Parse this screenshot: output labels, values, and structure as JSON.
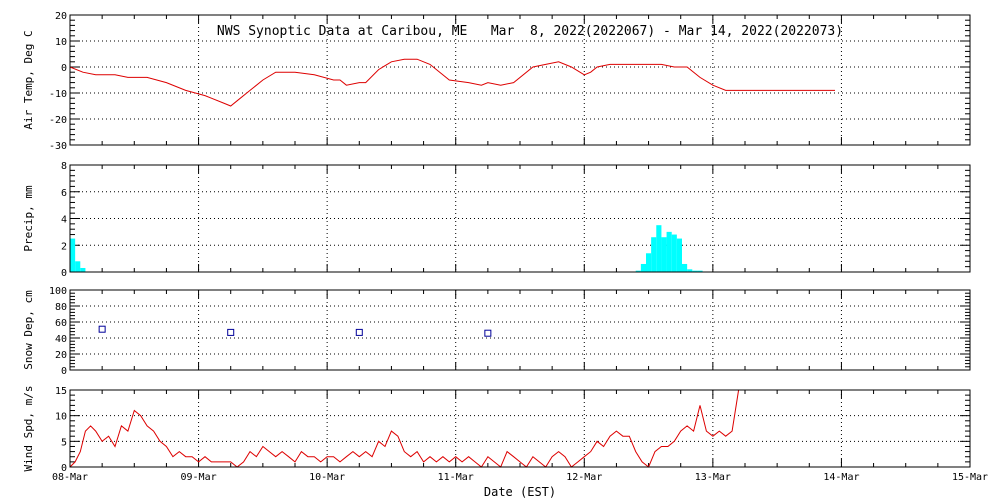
{
  "title": "NWS Synoptic Data at Caribou, ME   Mar  8, 2022(2022067) - Mar 14, 2022(2022073)",
  "x_axis": {
    "label": "Date (EST)",
    "ticks": [
      "08-Mar",
      "09-Mar",
      "10-Mar",
      "11-Mar",
      "12-Mar",
      "13-Mar",
      "14-Mar",
      "15-Mar"
    ],
    "range_days": [
      0,
      7
    ]
  },
  "colors": {
    "temp": "#dd0000",
    "precip": "#00ffff",
    "snow": "#000099",
    "wind": "#dd0000",
    "grid": "#000000"
  },
  "chart_data": [
    {
      "type": "line",
      "ylabel": "Air Temp, Deg C",
      "ylim": [
        -30,
        20
      ],
      "yticks": [
        -30,
        -20,
        -10,
        0,
        10,
        20
      ],
      "grid": true,
      "series": [
        {
          "x": [
            0,
            0.1,
            0.2,
            0.35,
            0.45,
            0.6,
            0.75,
            0.9,
            1.05,
            1.1,
            1.2,
            1.25,
            1.3,
            1.4,
            1.5,
            1.6,
            1.75,
            1.9,
            2.05,
            2.1,
            2.15,
            2.25,
            2.3,
            2.4,
            2.5,
            2.6,
            2.7,
            2.8,
            2.95,
            3.1,
            3.2,
            3.25,
            3.35,
            3.45,
            3.6,
            3.7,
            3.8,
            3.9,
            4.0,
            4.05,
            4.1,
            4.2,
            4.35,
            4.5,
            4.6,
            4.7,
            4.8,
            4.9,
            5.0,
            5.1,
            5.5,
            5.95
          ],
          "y": [
            0,
            -2,
            -3,
            -3,
            -4,
            -4,
            -6,
            -9,
            -11,
            -12,
            -14,
            -15,
            -13,
            -9,
            -5,
            -2,
            -2,
            -3,
            -5,
            -5,
            -7,
            -6,
            -6,
            -1,
            2,
            3,
            3,
            1,
            -5,
            -6,
            -7,
            -6,
            -7,
            -6,
            0,
            1,
            2,
            0,
            -3,
            -2,
            0,
            1,
            1,
            1,
            1,
            0,
            0,
            -4,
            -7,
            -9,
            -9,
            -9
          ]
        }
      ]
    },
    {
      "type": "bar",
      "ylabel": "Precip, mm",
      "ylim": [
        0,
        8
      ],
      "yticks": [
        0,
        2,
        4,
        6,
        8
      ],
      "grid": true,
      "bars": [
        {
          "x": 0.0,
          "y": 2.5
        },
        {
          "x": 0.04,
          "y": 0.8
        },
        {
          "x": 0.08,
          "y": 0.3
        },
        {
          "x": 4.4,
          "y": 0.1
        },
        {
          "x": 4.44,
          "y": 0.6
        },
        {
          "x": 4.48,
          "y": 1.4
        },
        {
          "x": 4.52,
          "y": 2.6
        },
        {
          "x": 4.56,
          "y": 3.5
        },
        {
          "x": 4.6,
          "y": 2.6
        },
        {
          "x": 4.64,
          "y": 3.0
        },
        {
          "x": 4.68,
          "y": 2.8
        },
        {
          "x": 4.72,
          "y": 2.5
        },
        {
          "x": 4.76,
          "y": 0.6
        },
        {
          "x": 4.8,
          "y": 0.2
        },
        {
          "x": 4.84,
          "y": 0.1
        },
        {
          "x": 4.88,
          "y": 0.1
        }
      ]
    },
    {
      "type": "scatter",
      "ylabel": "Snow Dep, cm",
      "ylim": [
        0,
        100
      ],
      "yticks": [
        0,
        20,
        40,
        60,
        80,
        100
      ],
      "grid": true,
      "points": [
        {
          "x": 0.25,
          "y": 51
        },
        {
          "x": 1.25,
          "y": 47
        },
        {
          "x": 2.25,
          "y": 47
        },
        {
          "x": 3.25,
          "y": 46
        }
      ]
    },
    {
      "type": "line",
      "ylabel": "Wind Spd, m/s",
      "ylim": [
        0,
        15
      ],
      "yticks": [
        0,
        5,
        10,
        15
      ],
      "grid": true,
      "series": [
        {
          "x": [
            0,
            0.04,
            0.08,
            0.12,
            0.16,
            0.2,
            0.25,
            0.3,
            0.35,
            0.4,
            0.45,
            0.5,
            0.55,
            0.6,
            0.65,
            0.7,
            0.75,
            0.8,
            0.85,
            0.9,
            0.95,
            1.0,
            1.05,
            1.1,
            1.15,
            1.2,
            1.25,
            1.3,
            1.35,
            1.4,
            1.45,
            1.5,
            1.55,
            1.6,
            1.65,
            1.7,
            1.75,
            1.8,
            1.85,
            1.9,
            1.95,
            2.0,
            2.05,
            2.1,
            2.15,
            2.2,
            2.25,
            2.3,
            2.35,
            2.4,
            2.45,
            2.5,
            2.55,
            2.6,
            2.65,
            2.7,
            2.75,
            2.8,
            2.85,
            2.9,
            2.95,
            3.0,
            3.05,
            3.1,
            3.15,
            3.2,
            3.25,
            3.3,
            3.35,
            3.4,
            3.45,
            3.5,
            3.55,
            3.6,
            3.65,
            3.7,
            3.75,
            3.8,
            3.85,
            3.9,
            3.95,
            4.0,
            4.05,
            4.1,
            4.15,
            4.2,
            4.25,
            4.3,
            4.35,
            4.4,
            4.45,
            4.5,
            4.55,
            4.6,
            4.65,
            4.7,
            4.75,
            4.8,
            4.85,
            4.9,
            4.95,
            5.0,
            5.05,
            5.1,
            5.15,
            5.2
          ],
          "y": [
            0,
            1,
            3,
            7,
            8,
            7,
            5,
            6,
            4,
            8,
            7,
            11,
            10,
            8,
            7,
            5,
            4,
            2,
            3,
            2,
            2,
            1,
            2,
            1,
            1,
            1,
            1,
            0,
            1,
            3,
            2,
            4,
            3,
            2,
            3,
            2,
            1,
            3,
            2,
            2,
            1,
            2,
            2,
            1,
            2,
            3,
            2,
            3,
            2,
            5,
            4,
            7,
            6,
            3,
            2,
            3,
            1,
            2,
            1,
            2,
            1,
            2,
            1,
            2,
            1,
            0,
            2,
            1,
            0,
            3,
            2,
            1,
            0,
            2,
            1,
            0,
            2,
            3,
            2,
            0,
            1,
            2,
            3,
            5,
            4,
            6,
            7,
            6,
            6,
            3,
            1,
            0,
            3,
            4,
            4,
            5,
            7,
            8,
            7,
            12,
            7,
            6,
            7,
            6,
            7,
            15
          ]
        }
      ]
    }
  ]
}
